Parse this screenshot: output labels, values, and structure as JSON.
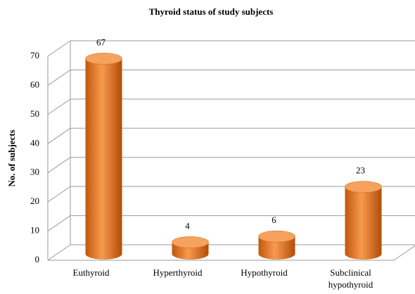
{
  "chart_data": {
    "type": "bar",
    "title": "Thyroid status of study subjects",
    "y_label": "No. of subjects",
    "categories": [
      "Euthyroid",
      "Hyperthyroid",
      "Hypothyroid",
      "Subclinical hypothyroid"
    ],
    "values": [
      67,
      4,
      6,
      23
    ],
    "color": "#f28a35",
    "ylim": [
      0,
      70
    ],
    "yticks": [
      0,
      10,
      20,
      30,
      40,
      50,
      60,
      70
    ],
    "grid": true
  }
}
